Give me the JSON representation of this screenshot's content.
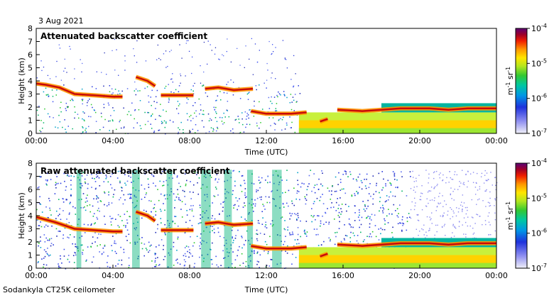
{
  "date": "3 Aug 2021",
  "instrument": "Sodankyla CT25K ceilometer",
  "chart_data": [
    {
      "type": "heatmap",
      "title": "Attenuated backscatter coefficient",
      "xlabel": "Time (UTC)",
      "ylabel": "Height (km)",
      "xlim": [
        0,
        24
      ],
      "ylim": [
        0,
        8
      ],
      "xticks": [
        "00:00",
        "04:00",
        "08:00",
        "12:00",
        "16:00",
        "20:00",
        "00:00"
      ],
      "yticks": [
        0,
        1,
        2,
        3,
        4,
        5,
        6,
        7,
        8
      ],
      "features": [
        {
          "name": "cloud layer",
          "t": [
            0,
            0.5,
            1.2,
            2,
            3,
            4,
            4.5
          ],
          "h": [
            3.8,
            3.7,
            3.5,
            3.0,
            2.9,
            2.8,
            2.8
          ]
        },
        {
          "name": "cloud layer",
          "t": [
            5.2,
            5.8,
            6.2
          ],
          "h": [
            4.3,
            4.0,
            3.6
          ]
        },
        {
          "name": "cloud layer",
          "t": [
            6.5,
            7.5,
            8.2
          ],
          "h": [
            2.9,
            2.9,
            2.9
          ]
        },
        {
          "name": "cloud layer",
          "t": [
            8.8,
            9.5,
            10.3,
            11.3
          ],
          "h": [
            3.4,
            3.5,
            3.3,
            3.4
          ]
        },
        {
          "name": "low cloud",
          "t": [
            11.2,
            12,
            12.8,
            13.3,
            14.1
          ],
          "h": [
            1.7,
            1.5,
            1.5,
            1.5,
            1.6
          ]
        },
        {
          "name": "low cloud",
          "t": [
            14.8,
            15.2
          ],
          "h": [
            0.9,
            1.1
          ]
        },
        {
          "name": "cloud top",
          "t": [
            15.7,
            17,
            18,
            19,
            19.7,
            20.5,
            21.5,
            22.5,
            24
          ],
          "h": [
            1.8,
            1.7,
            1.8,
            1.9,
            1.9,
            1.9,
            1.8,
            1.9,
            1.9
          ]
        }
      ],
      "colorbar": {
        "scale": "log",
        "min_exp": -7,
        "max_exp": -4,
        "unit": "m^-1 sr^-1",
        "label_parts": [
          "m",
          "-1",
          " sr",
          "-1"
        ]
      }
    },
    {
      "type": "heatmap",
      "title": "Raw attenuated backscatter coefficient",
      "xlabel": "Time (UTC)",
      "ylabel": "Height (km)",
      "xlim": [
        0,
        24
      ],
      "ylim": [
        0,
        8
      ],
      "xticks": [
        "00:00",
        "04:00",
        "08:00",
        "12:00",
        "16:00",
        "20:00",
        "00:00"
      ],
      "yticks": [
        0,
        1,
        2,
        3,
        4,
        5,
        6,
        7,
        8
      ],
      "features": [
        {
          "name": "cloud layer",
          "t": [
            0,
            1,
            2,
            3,
            4,
            4.5
          ],
          "h": [
            3.9,
            3.5,
            3.0,
            2.9,
            2.8,
            2.8
          ]
        },
        {
          "name": "cloud layer",
          "t": [
            5.2,
            5.8,
            6.2
          ],
          "h": [
            4.3,
            4.0,
            3.6
          ]
        },
        {
          "name": "cloud layer",
          "t": [
            6.5,
            7.5,
            8.2
          ],
          "h": [
            2.9,
            2.9,
            2.9
          ]
        },
        {
          "name": "cloud layer",
          "t": [
            8.8,
            9.5,
            10.3,
            11.3
          ],
          "h": [
            3.4,
            3.5,
            3.3,
            3.4
          ]
        },
        {
          "name": "low cloud",
          "t": [
            11.2,
            12,
            12.8,
            13.3,
            14.1
          ],
          "h": [
            1.7,
            1.5,
            1.5,
            1.5,
            1.6
          ]
        },
        {
          "name": "low cloud",
          "t": [
            14.8,
            15.2
          ],
          "h": [
            0.9,
            1.1
          ]
        },
        {
          "name": "cloud top",
          "t": [
            15.7,
            17,
            18,
            19,
            19.7,
            20.5,
            21.5,
            22.5,
            24
          ],
          "h": [
            1.8,
            1.7,
            1.8,
            1.9,
            1.9,
            1.9,
            1.8,
            1.9,
            1.9
          ]
        }
      ],
      "colorbar": {
        "scale": "log",
        "min_exp": -7,
        "max_exp": -4,
        "unit": "m^-1 sr^-1",
        "label_parts": [
          "m",
          "-1",
          " sr",
          "-1"
        ]
      }
    }
  ]
}
